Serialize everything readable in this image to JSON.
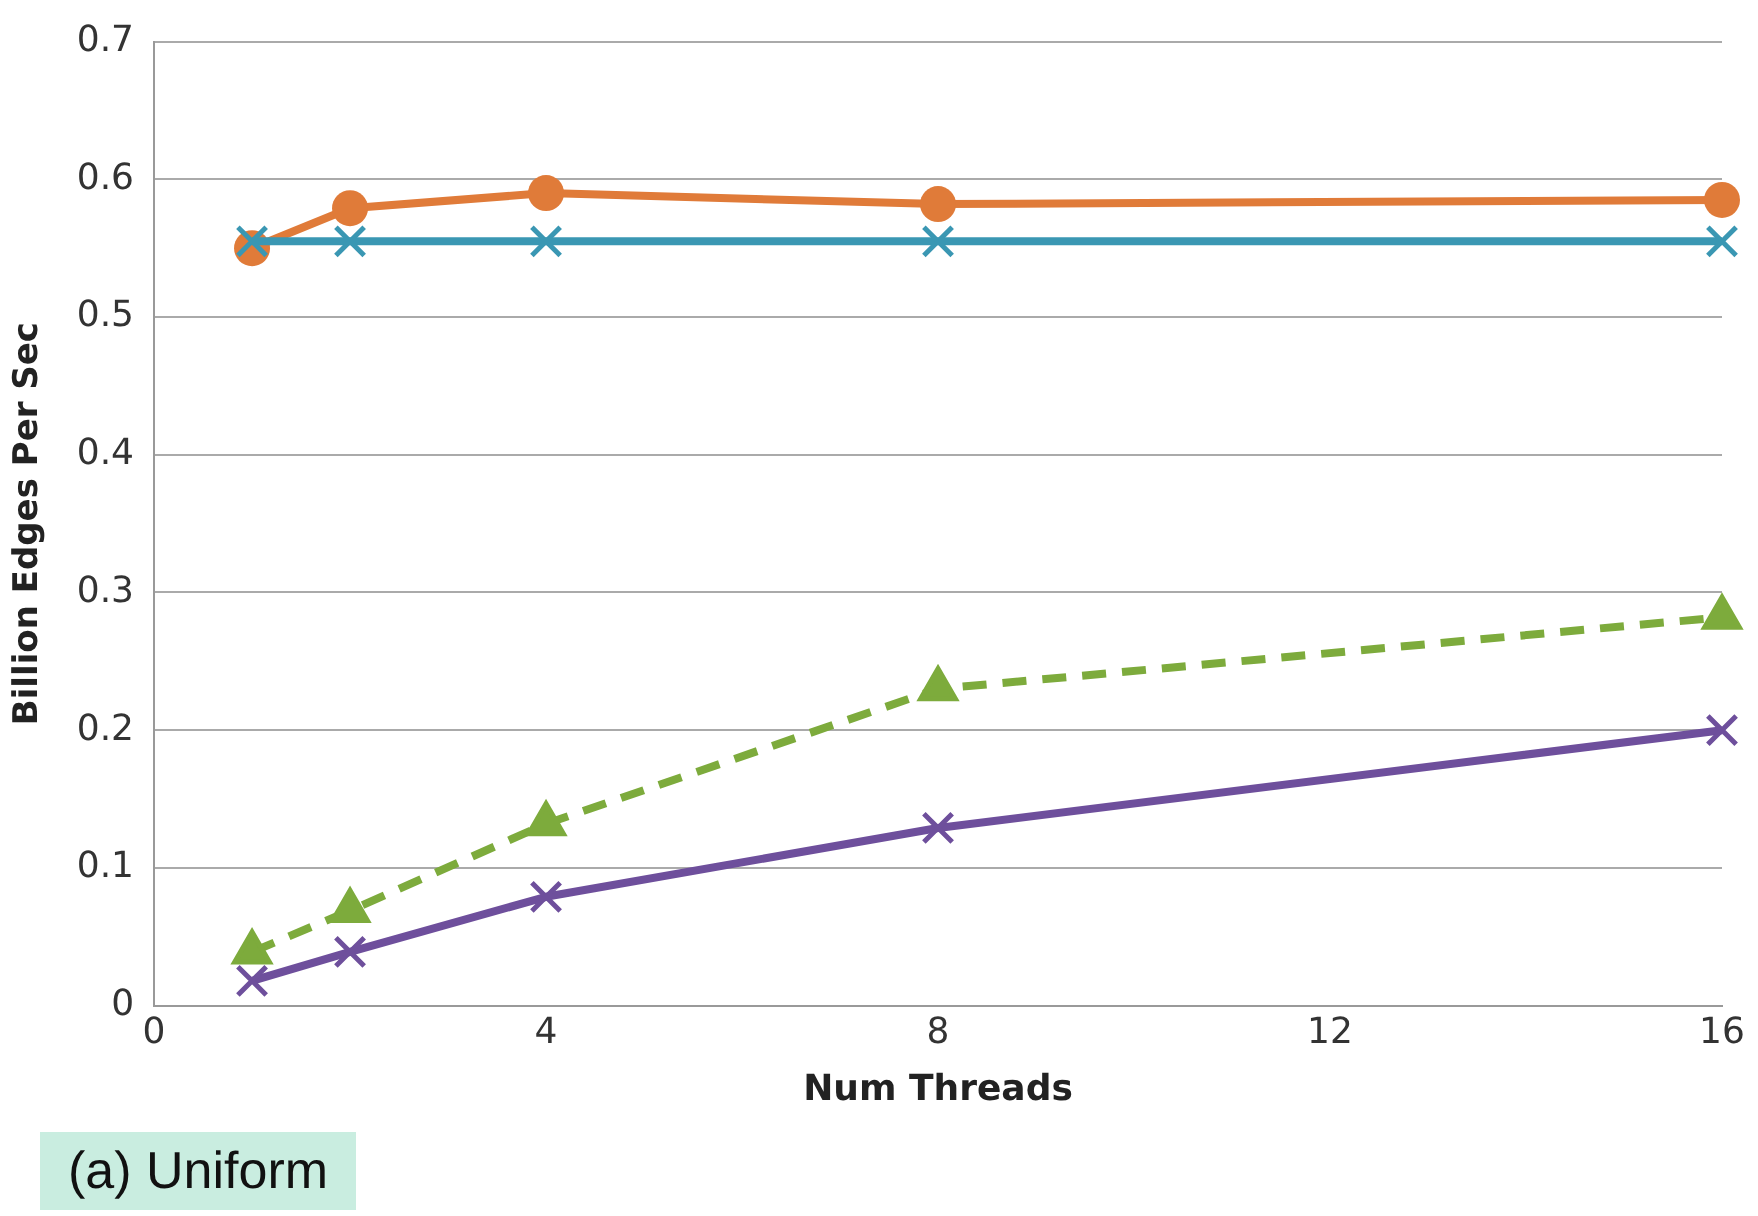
{
  "chart_data": {
    "type": "line",
    "xlabel": "Num Threads",
    "ylabel": "Billion Edges Per Sec",
    "x": [
      1,
      2,
      4,
      8,
      16
    ],
    "series": [
      {
        "color": "#e07b39",
        "values": [
          0.55,
          0.579,
          0.59,
          0.582,
          0.585
        ],
        "marker": "circle",
        "line_style": "solid"
      },
      {
        "color": "#3a97b3",
        "values": [
          0.555,
          0.555,
          0.555,
          0.555,
          0.555
        ],
        "marker": "cross",
        "line_style": "solid"
      },
      {
        "color": "#7dab3c",
        "values": [
          0.039,
          0.069,
          0.132,
          0.23,
          0.282
        ],
        "marker": "triangle",
        "line_style": "dashed"
      },
      {
        "color": "#6e4f9c",
        "values": [
          0.018,
          0.039,
          0.079,
          0.129,
          0.2
        ],
        "marker": "cross",
        "line_style": "solid"
      }
    ],
    "xlim": [
      0,
      16
    ],
    "xticks": [
      0,
      4,
      8,
      12,
      16
    ],
    "ylim": [
      0,
      0.7
    ],
    "yticks": [
      0,
      0.1,
      0.2,
      0.3,
      0.4,
      0.5,
      0.6,
      0.7
    ],
    "grid": "y",
    "legend": false,
    "annotations": [
      "(a) Uniform"
    ]
  }
}
